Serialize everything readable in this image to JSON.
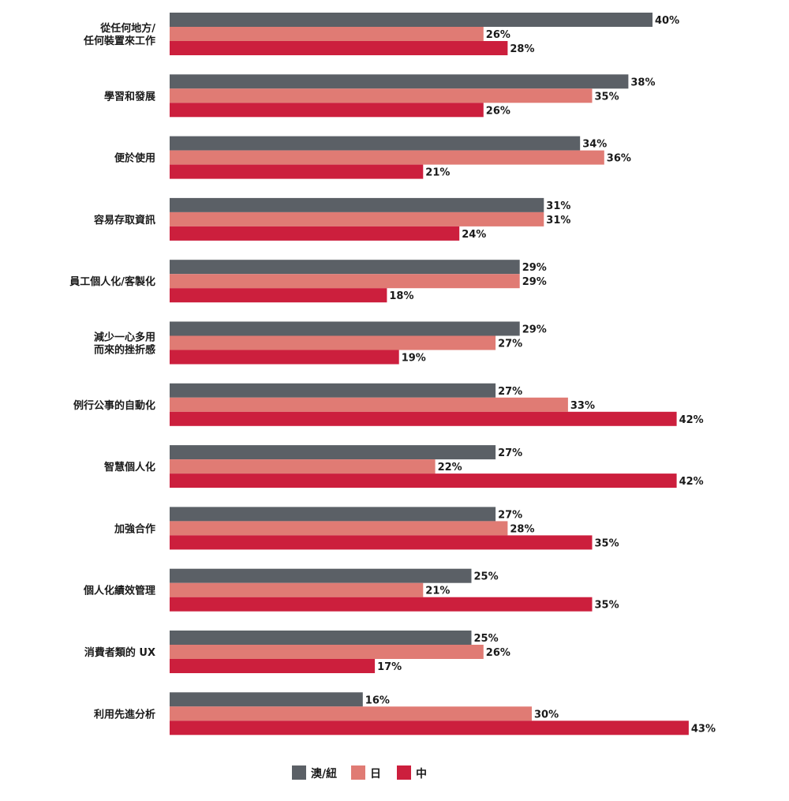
{
  "chart_data": {
    "type": "bar",
    "orientation": "horizontal",
    "categories": [
      [
        "從任何地方/",
        "任何裝置來工作"
      ],
      [
        "學習和發展"
      ],
      [
        "便於使用"
      ],
      [
        "容易存取資訊"
      ],
      [
        "員工個人化/客製化"
      ],
      [
        "減少一心多用",
        "而來的挫折感"
      ],
      [
        "例行公事的自動化"
      ],
      [
        "智慧個人化"
      ],
      [
        "加強合作"
      ],
      [
        "個人化績效管理"
      ],
      [
        "消費者類的 UX"
      ],
      [
        "利用先進分析"
      ]
    ],
    "series": [
      {
        "name": "澳/紐",
        "color": "#5b6066",
        "values": [
          40,
          38,
          34,
          31,
          29,
          29,
          27,
          27,
          27,
          25,
          25,
          16
        ]
      },
      {
        "name": "日",
        "color": "#e07b74",
        "values": [
          26,
          35,
          36,
          31,
          29,
          27,
          33,
          22,
          28,
          21,
          26,
          30
        ]
      },
      {
        "name": "中",
        "color": "#cc1f3d",
        "values": [
          28,
          26,
          21,
          24,
          18,
          19,
          42,
          42,
          35,
          35,
          17,
          43
        ]
      }
    ],
    "value_suffix": "%",
    "xlim": [
      0,
      100
    ],
    "grid": false,
    "legend_position": "bottom-center"
  }
}
